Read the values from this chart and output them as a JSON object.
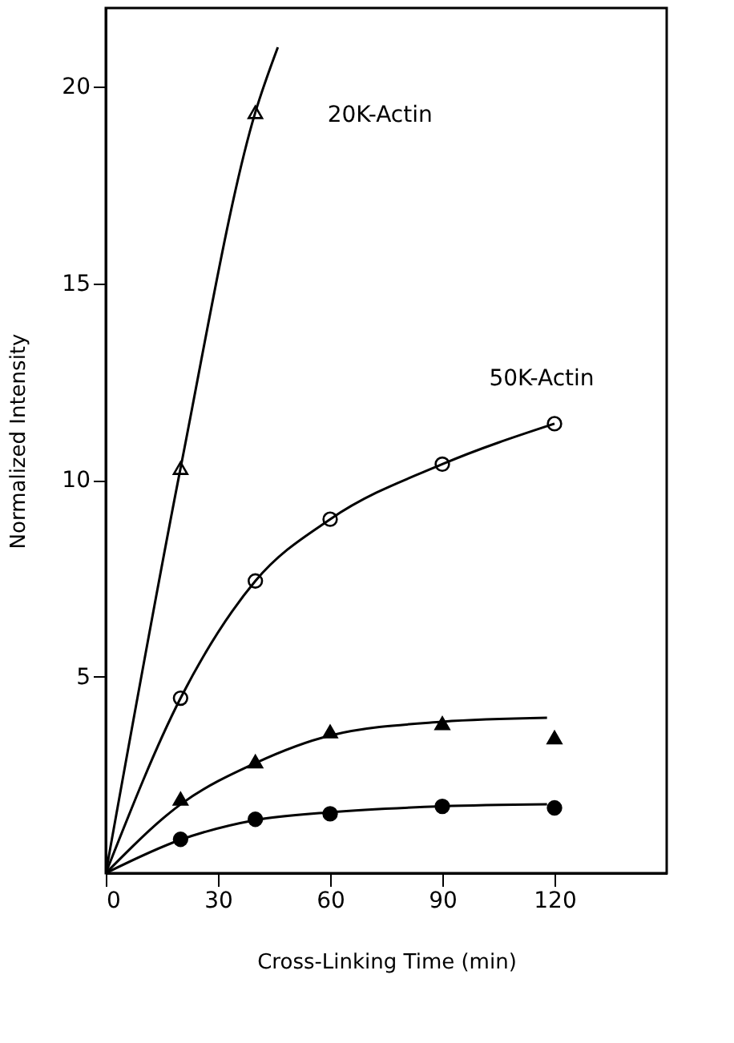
{
  "chart_data": {
    "type": "scatter",
    "xlabel": "Cross-Linking Time (min)",
    "ylabel": "Normalized Intensity",
    "xlim": [
      0,
      150
    ],
    "ylim": [
      0,
      22
    ],
    "xticks": [
      0,
      30,
      60,
      90,
      120
    ],
    "yticks": [
      5,
      10,
      15,
      20
    ],
    "grid": false,
    "legend": false,
    "series": [
      {
        "name": "20K-Actin",
        "marker": "triangle",
        "color": "#ffffff",
        "x": [
          20,
          40
        ],
        "values": [
          10.3,
          19.35
        ]
      },
      {
        "name": "50K-Actin",
        "marker": "circle",
        "color": "#ffffff",
        "x": [
          20,
          40,
          60,
          90,
          120
        ],
        "values": [
          4.45,
          7.43,
          9.0,
          10.4,
          11.43
        ]
      },
      {
        "marker": "triangle",
        "color": "#000000",
        "x": [
          20,
          40,
          60,
          90,
          120
        ],
        "values": [
          1.89,
          2.84,
          3.6,
          3.81,
          3.45
        ]
      },
      {
        "marker": "circle",
        "color": "#000000",
        "x": [
          20,
          40,
          60,
          90,
          120
        ],
        "values": [
          0.86,
          1.37,
          1.51,
          1.7,
          1.66
        ]
      },
      {
        "type": "line",
        "marker": "none",
        "line_style": "solid",
        "color": "#000000",
        "x": [
          0,
          20,
          40,
          46
        ],
        "values": [
          0,
          10.3,
          19.35,
          21.0
        ]
      },
      {
        "type": "line",
        "marker": "none",
        "line_style": "solid",
        "color": "#000000",
        "x": [
          0,
          20,
          40,
          60,
          90,
          120
        ],
        "values": [
          0,
          4.45,
          7.43,
          9.0,
          10.4,
          11.43
        ]
      },
      {
        "type": "line",
        "marker": "none",
        "line_style": "solid",
        "color": "#000000",
        "x": [
          0,
          20,
          40,
          60,
          90,
          118
        ],
        "values": [
          0,
          1.75,
          2.8,
          3.5,
          3.85,
          3.95
        ]
      },
      {
        "type": "line",
        "marker": "none",
        "line_style": "solid",
        "color": "#000000",
        "x": [
          0,
          20,
          40,
          60,
          90,
          118
        ],
        "values": [
          0,
          0.85,
          1.35,
          1.55,
          1.7,
          1.75
        ]
      }
    ]
  }
}
